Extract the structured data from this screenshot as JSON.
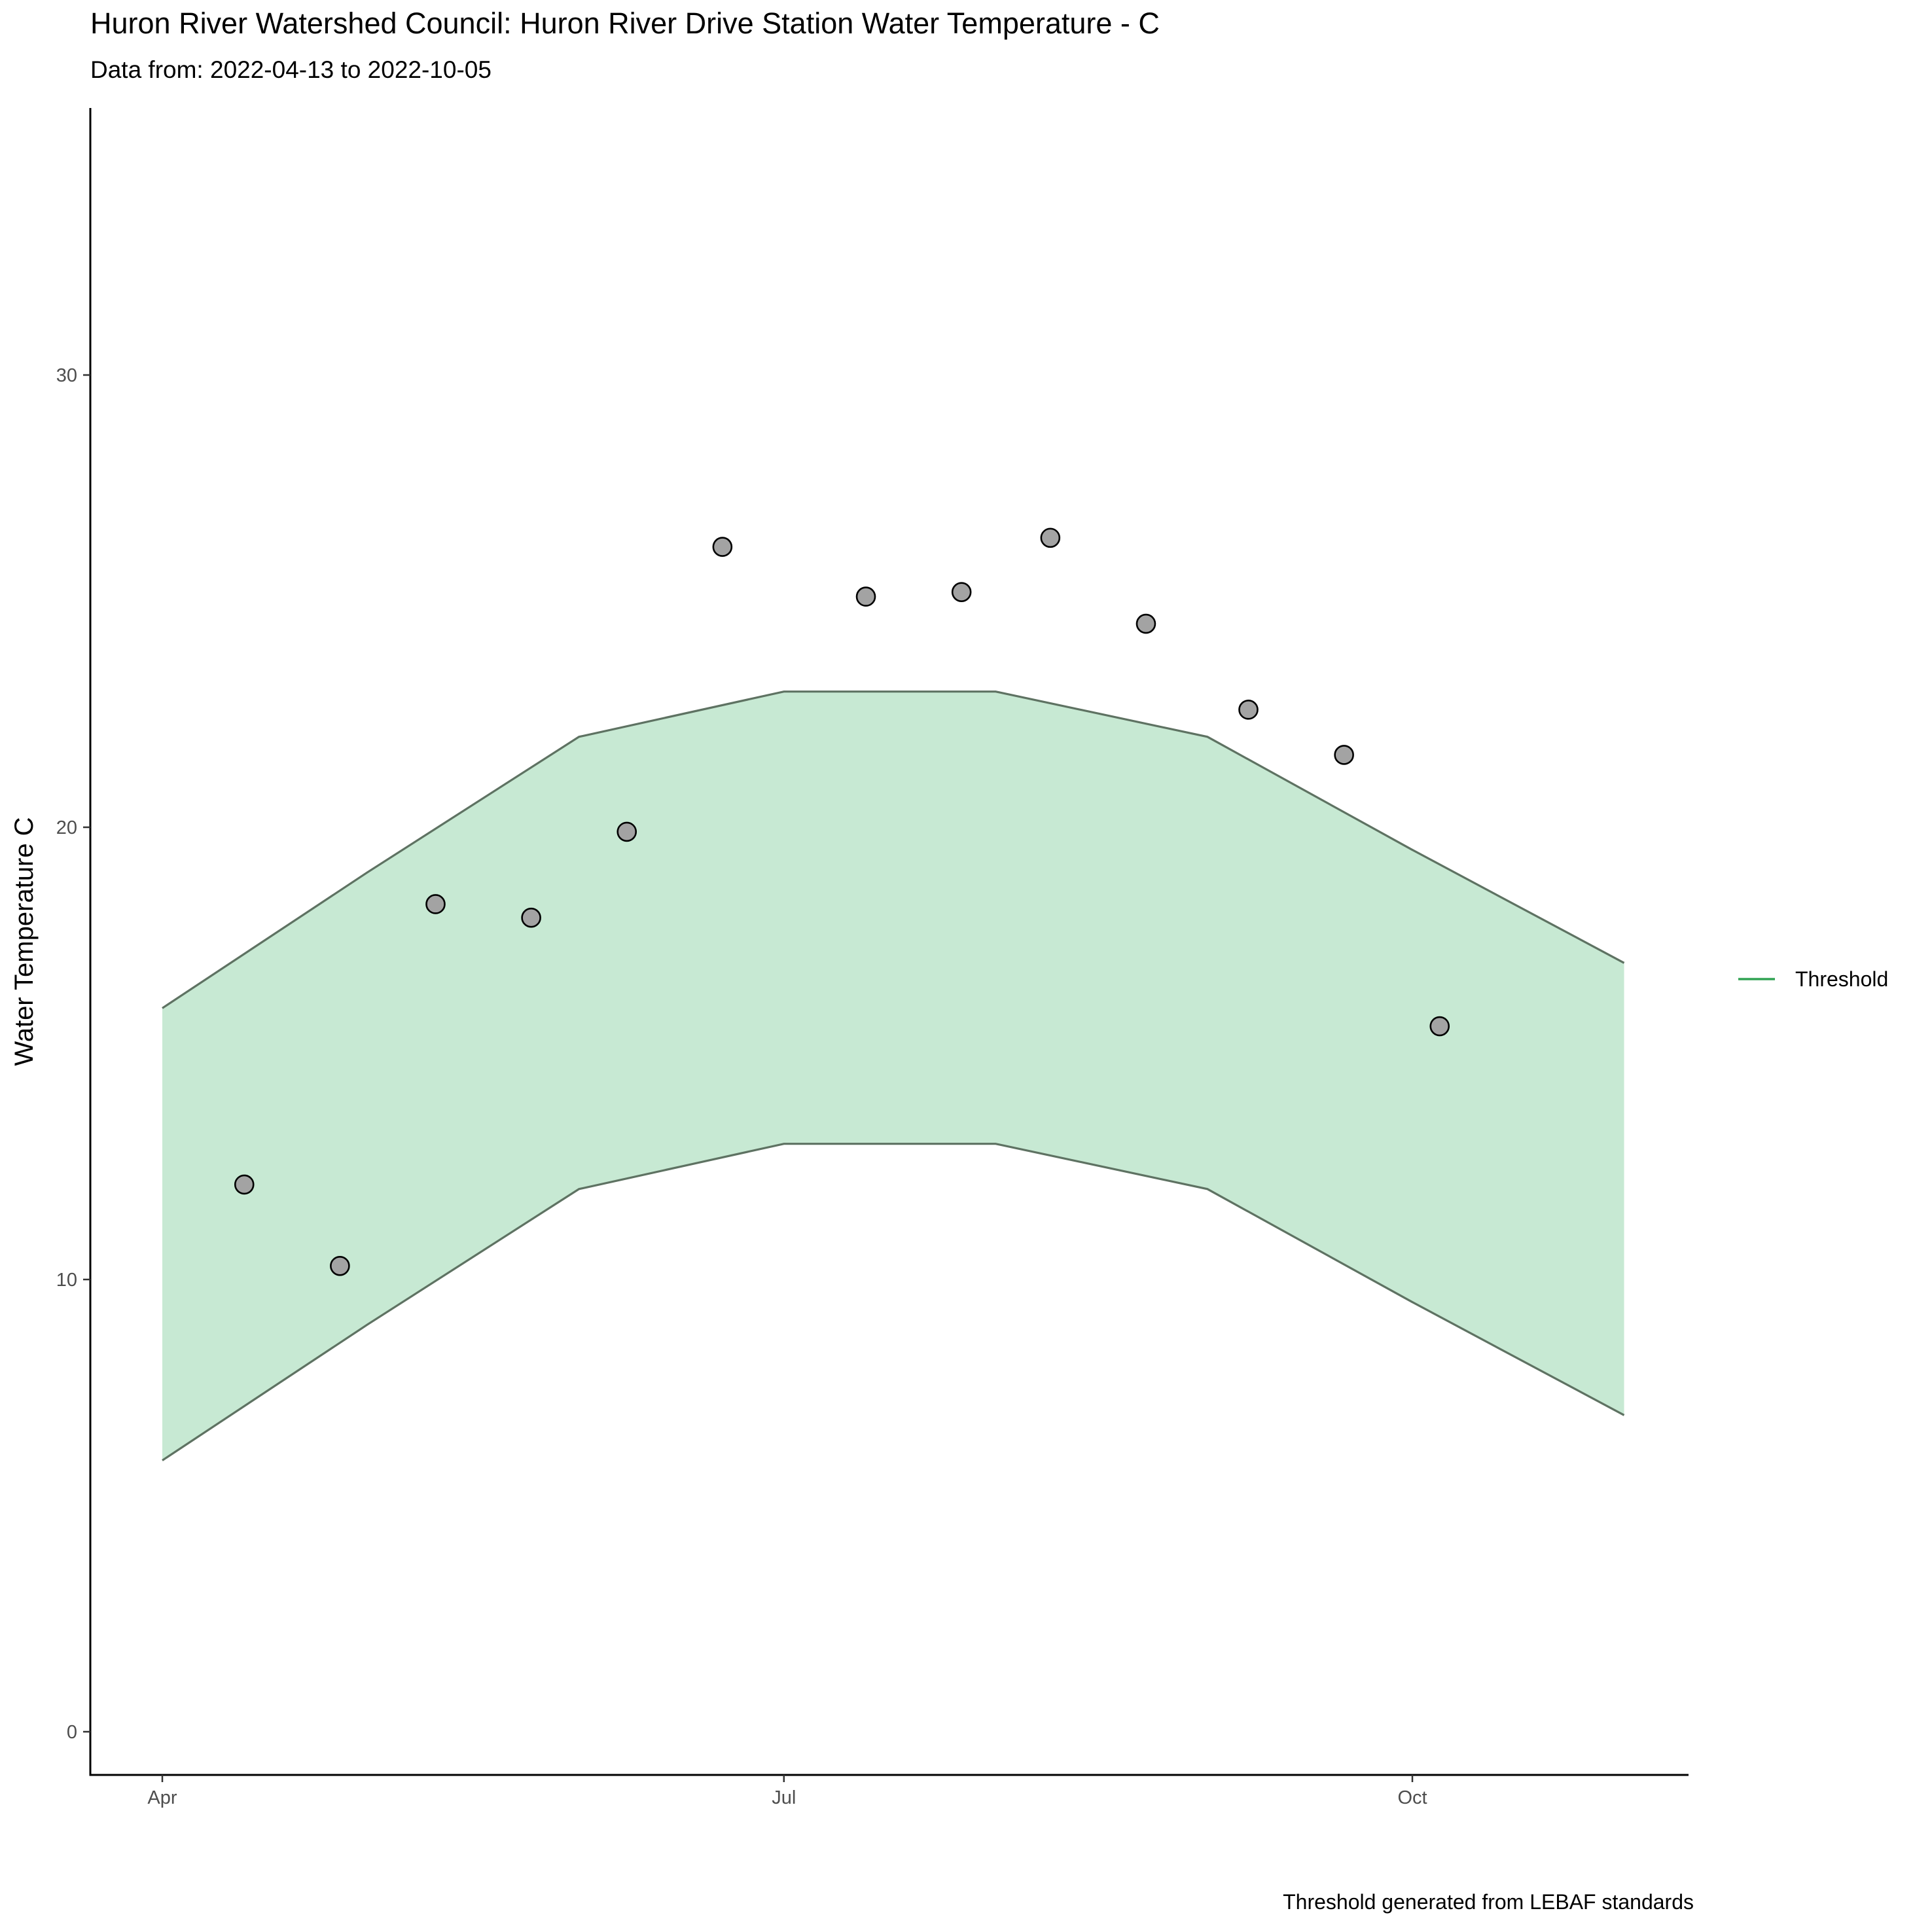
{
  "chart_data": {
    "type": "scatter",
    "title": "Huron River Watershed Council: Huron River Drive Station Water Temperature - C",
    "subtitle": "Data from: 2022-04-13 to 2022-10-05",
    "caption": "Threshold generated from LEBAF standards",
    "xlabel": "",
    "ylabel": "Water Temperature C",
    "x_ticks": [
      {
        "date": "2022-04-01",
        "label": "Apr"
      },
      {
        "date": "2022-07-01",
        "label": "Jul"
      },
      {
        "date": "2022-10-01",
        "label": "Oct"
      }
    ],
    "xlim": [
      "2021-03-21",
      "2021-11-10"
    ],
    "y_ticks": [
      0,
      10,
      20,
      30
    ],
    "ylim": [
      -0.75,
      36
    ],
    "grid": false,
    "legend": {
      "position": "right",
      "entries": [
        {
          "label": "Threshold",
          "color": "#31a354"
        }
      ]
    },
    "colors": {
      "band_fill": "#c7e9d3",
      "band_line": "#5e7262",
      "point_fill": "#a3a3a3",
      "point_stroke": "#000000"
    },
    "series": [
      {
        "name": "Threshold",
        "type": "ribbon",
        "x": [
          "2022-04-01",
          "2022-05-01",
          "2022-06-01",
          "2022-07-01",
          "2022-08-01",
          "2022-09-01",
          "2022-10-01",
          "2022-11-01"
        ],
        "upper": [
          16,
          19,
          22,
          23,
          23,
          22,
          19.5,
          17
        ],
        "lower": [
          6,
          9,
          12,
          13,
          13,
          12,
          9.5,
          7
        ]
      },
      {
        "type": "points",
        "x": [
          "2022-04-13",
          "2022-04-27",
          "2022-05-11",
          "2022-05-25",
          "2022-06-08",
          "2022-06-22",
          "2022-07-13",
          "2022-07-27",
          "2022-08-09",
          "2022-08-23",
          "2022-09-07",
          "2022-09-21",
          "2022-10-05"
        ],
        "y": [
          12.1,
          10.3,
          18.3,
          18.0,
          19.9,
          26.2,
          25.1,
          25.2,
          26.4,
          24.5,
          22.6,
          21.6,
          15.6
        ]
      }
    ]
  }
}
